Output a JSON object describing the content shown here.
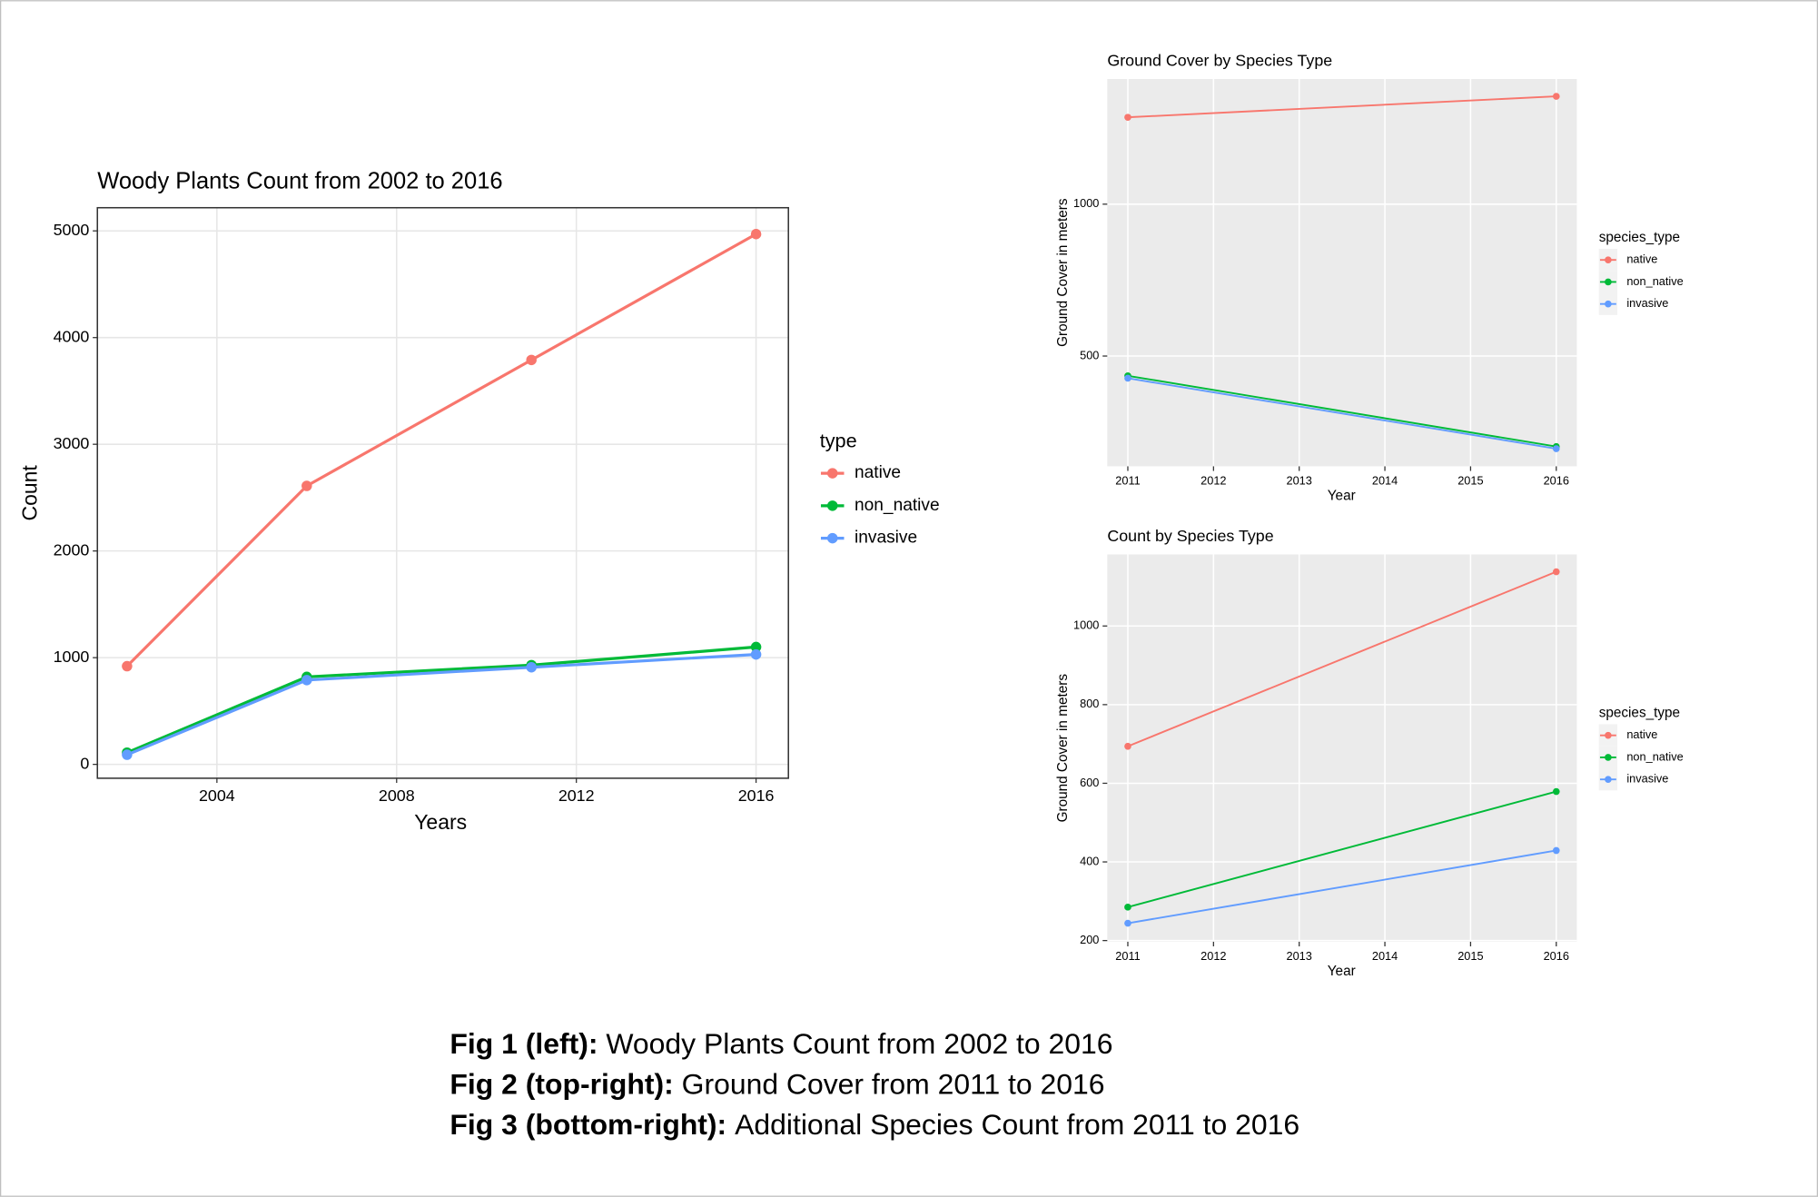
{
  "chart_data": [
    {
      "type": "line",
      "title": "Woody Plants Count from 2002 to 2016",
      "x_label": "Years",
      "y_label": "Count",
      "legend_title": "type",
      "x": [
        2002,
        2006,
        2011,
        2016
      ],
      "series": [
        {
          "name": "native",
          "color": "#F8766D",
          "values": [
            920,
            2610,
            3790,
            4970
          ]
        },
        {
          "name": "non_native",
          "color": "#00BA38",
          "values": [
            110,
            820,
            930,
            1100
          ]
        },
        {
          "name": "invasive",
          "color": "#619CFF",
          "values": [
            90,
            790,
            910,
            1030
          ]
        }
      ],
      "xlim": [
        2001.34,
        2016.72
      ],
      "xticks": [
        2004,
        2008,
        2012,
        2016
      ],
      "ylim": [
        -130,
        5217
      ],
      "yticks": [
        0,
        1000,
        2000,
        3000,
        4000,
        5000
      ],
      "grid": true,
      "legend": "right"
    },
    {
      "type": "line",
      "title": "Ground Cover by Species Type",
      "x_label": "Year",
      "y_label": "Ground Cover in meters",
      "legend_title": "species_type",
      "x": [
        2011,
        2016
      ],
      "series": [
        {
          "name": "native",
          "color": "#F8766D",
          "values": [
            1286,
            1355
          ]
        },
        {
          "name": "non_native",
          "color": "#00BA38",
          "values": [
            435,
            202
          ]
        },
        {
          "name": "invasive",
          "color": "#619CFF",
          "values": [
            427,
            195
          ]
        }
      ],
      "xlim": [
        2010.76,
        2016.24
      ],
      "xticks": [
        2011,
        2012,
        2013,
        2014,
        2015,
        2016
      ],
      "ylim": [
        137,
        1412
      ],
      "yticks": [
        500,
        1000
      ],
      "grid": true,
      "legend": "right"
    },
    {
      "type": "line",
      "title": "Count by Species Type",
      "x_label": "Year",
      "y_label": "Ground Cover in meters",
      "legend_title": "species_type",
      "x": [
        2011,
        2016
      ],
      "series": [
        {
          "name": "native",
          "color": "#F8766D",
          "values": [
            694,
            1138
          ]
        },
        {
          "name": "non_native",
          "color": "#00BA38",
          "values": [
            285,
            579
          ]
        },
        {
          "name": "invasive",
          "color": "#619CFF",
          "values": [
            244,
            429
          ]
        }
      ],
      "xlim": [
        2010.76,
        2016.24
      ],
      "xticks": [
        2011,
        2012,
        2013,
        2014,
        2015,
        2016
      ],
      "ylim": [
        197,
        1182
      ],
      "yticks": [
        200,
        400,
        600,
        800,
        1000
      ],
      "grid": true,
      "legend": "right"
    }
  ],
  "caption": [
    {
      "bold": "Fig 1 (left):",
      "text": "Woody Plants Count from 2002 to 2016"
    },
    {
      "bold": "Fig 2 (top-right):",
      "text": "Ground Cover from 2011 to 2016"
    },
    {
      "bold": "Fig 3 (bottom-right):",
      "text": "Additional Species Count from 2011 to 2016"
    }
  ]
}
